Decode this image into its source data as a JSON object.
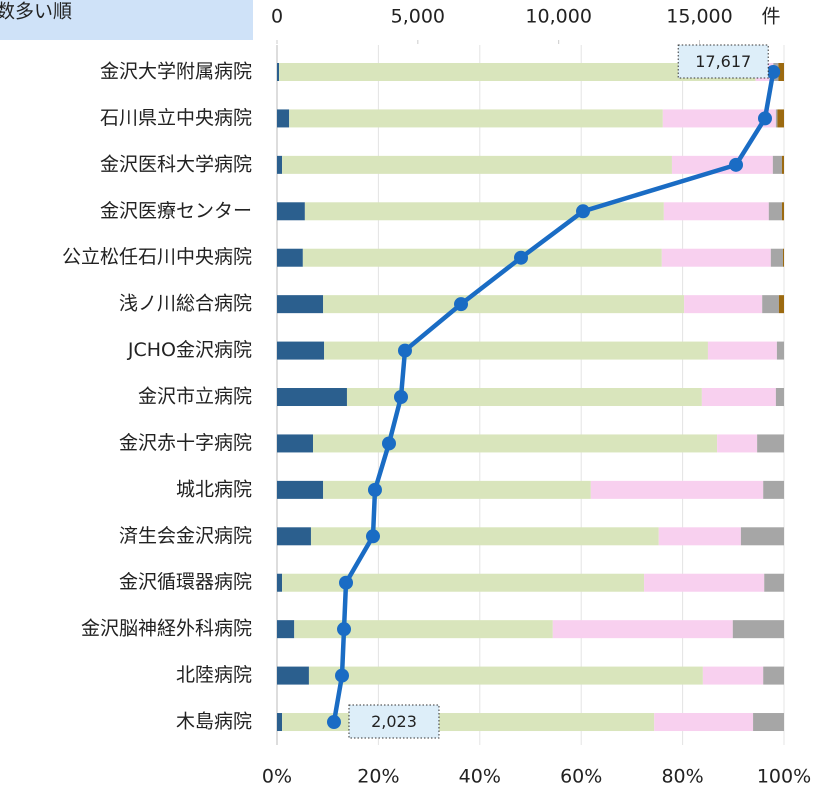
{
  "chart_data": {
    "type": "bar",
    "orientation": "horizontal",
    "stacked": true,
    "title": "数多い順",
    "categories": [
      "金沢大学附属病院",
      "石川県立中央病院",
      "金沢医科大学病院",
      "金沢医療センター",
      "公立松任石川中央病院",
      "浅ノ川総合病院",
      "JCHO金沢病院",
      "金沢市立病院",
      "金沢赤十字病院",
      "城北病院",
      "済生会金沢病院",
      "金沢循環器病院",
      "金沢脳神経外科病院",
      "北陸病院",
      "木島病院"
    ],
    "series": [
      {
        "color": "#2b5f8e",
        "values": [
          0.4,
          2.4,
          1.0,
          5.5,
          5.1,
          9.1,
          9.3,
          13.8,
          7.1,
          9.1,
          6.7,
          1.0,
          3.4,
          6.3,
          1.0
        ]
      },
      {
        "color": "#d9e5bc",
        "values": [
          94,
          73.7,
          76.9,
          70.8,
          70.8,
          71.2,
          75.7,
          70,
          79.7,
          52.8,
          68.6,
          71.4,
          51,
          77.7,
          73.4
        ]
      },
      {
        "color": "#f8d0ef",
        "values": [
          3.5,
          22.3,
          19.9,
          20.7,
          21.5,
          15.4,
          13.6,
          14.6,
          7.9,
          34,
          16.2,
          23.7,
          35.5,
          11.9,
          19.5
        ]
      },
      {
        "color": "#a6a6a6",
        "values": [
          1,
          0.3,
          1.8,
          2.6,
          2.4,
          3.3,
          1.4,
          1.6,
          5.3,
          4.1,
          8.5,
          3.9,
          10.1,
          4.1,
          6.1
        ]
      },
      {
        "color": "#9c6a10",
        "values": [
          1.1,
          1.3,
          0.4,
          0.4,
          0.2,
          1.0,
          0,
          0,
          0,
          0,
          0,
          0,
          0,
          0,
          0
        ]
      },
      {
        "type": "line",
        "axis": "x2",
        "color": "#1a6cc4",
        "values": [
          17617,
          17325,
          16296,
          10864,
          8663,
          6533,
          4544,
          4402,
          3976,
          3479,
          3408,
          2450,
          2379,
          2308,
          2023
        ],
        "value_labels": [
          "17,617",
          null,
          null,
          null,
          null,
          null,
          null,
          null,
          null,
          null,
          null,
          null,
          null,
          null,
          "2,023"
        ]
      }
    ],
    "xlim": [
      0,
      100
    ],
    "xticks": [
      {
        "value": 0,
        "label": "0%"
      },
      {
        "value": 20,
        "label": "20%"
      },
      {
        "value": 40,
        "label": "40%"
      },
      {
        "value": 60,
        "label": "60%"
      },
      {
        "value": 80,
        "label": "80%"
      },
      {
        "value": 100,
        "label": "100%"
      }
    ],
    "x2lim": [
      0,
      18000
    ],
    "x2ticks": [
      0,
      {
        "value": 5000,
        "label": "5,000"
      },
      {
        "value": 10000,
        "label": "10,000"
      },
      {
        "value": 15000,
        "label": "15,000"
      }
    ],
    "x2label": "件",
    "grid": true
  }
}
